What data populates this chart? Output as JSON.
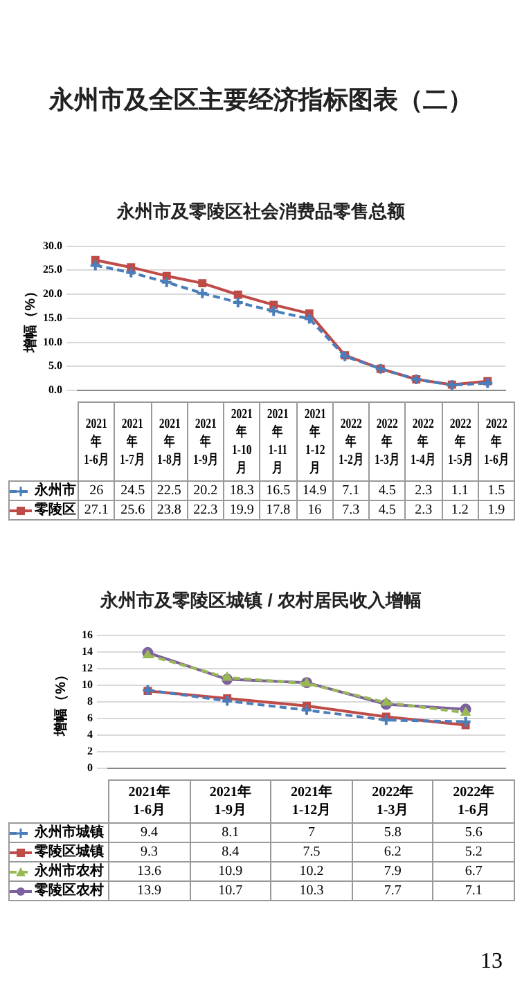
{
  "chart_data": [
    {
      "type": "line",
      "title": "永州市及全区主要经济指标图表（二）",
      "subtitle": "永州市及零陵区社会消费品零售总额",
      "ylabel": "增幅（%）",
      "categories": [
        "2021年1-6月",
        "2021年1-7月",
        "2021年1-8月",
        "2021年1-9月",
        "2021年1-10月",
        "2021年1-11月",
        "2021年1-12月",
        "2022年1-2月",
        "2022年1-3月",
        "2022年1-4月",
        "2022年1-5月",
        "2022年1-6月"
      ],
      "series": [
        {
          "name": "永州市",
          "color": "#4a7ebb",
          "marker": "cross",
          "line_style": "dashed",
          "values": [
            26,
            24.5,
            22.5,
            20.2,
            18.3,
            16.5,
            14.9,
            7.1,
            4.5,
            2.3,
            1.1,
            1.5
          ]
        },
        {
          "name": "零陵区",
          "color": "#be4b48",
          "marker": "square",
          "line_style": "solid",
          "values": [
            27.1,
            25.6,
            23.8,
            22.3,
            19.9,
            17.8,
            16,
            7.3,
            4.5,
            2.3,
            1.2,
            1.9
          ]
        }
      ],
      "ylim": [
        0,
        30
      ],
      "yticks": [
        {
          "value": 0,
          "label": "0.0"
        },
        {
          "value": 5,
          "label": "5.0"
        },
        {
          "value": 10,
          "label": "10.0"
        },
        {
          "value": 15,
          "label": "15.0"
        },
        {
          "value": 20,
          "label": "20.0"
        },
        {
          "value": 25,
          "label": "25.0"
        },
        {
          "value": 30,
          "label": "30.0"
        }
      ],
      "grid": "y",
      "legend": "bottom",
      "tick_labels": "y",
      "data_labels": true
    },
    {
      "type": "line",
      "title": "永州市及零陵区城镇 / 农村居民收入增幅",
      "ylabel": "增幅（%）",
      "categories": [
        "2021年1-6月",
        "2021年1-9月",
        "2021年1-12月",
        "2022年1-3月",
        "2022年1-6月"
      ],
      "series": [
        {
          "name": "永州市城镇",
          "color": "#4a7ebb",
          "marker": "cross",
          "line_style": "dashed",
          "values": [
            9.4,
            8.1,
            7,
            5.8,
            5.6
          ]
        },
        {
          "name": "零陵区城镇",
          "color": "#be4b48",
          "marker": "square",
          "line_style": "solid",
          "values": [
            9.3,
            8.4,
            7.5,
            6.2,
            5.2
          ]
        },
        {
          "name": "永州市农村",
          "color": "#98b954",
          "marker": "triangle",
          "line_style": "dashed",
          "values": [
            13.6,
            10.9,
            10.2,
            7.9,
            6.7
          ]
        },
        {
          "name": "零陵区农村",
          "color": "#7d60a0",
          "marker": "circle",
          "line_style": "solid",
          "values": [
            13.9,
            10.7,
            10.3,
            7.7,
            7.1
          ]
        }
      ],
      "ylim": [
        0,
        16
      ],
      "yticks": [
        0,
        2,
        4,
        6,
        8,
        10,
        12,
        14,
        16
      ],
      "grid": "y",
      "legend": "bottom",
      "tick_labels": "y",
      "data_labels": true,
      "annotations": [
        "13"
      ]
    }
  ]
}
